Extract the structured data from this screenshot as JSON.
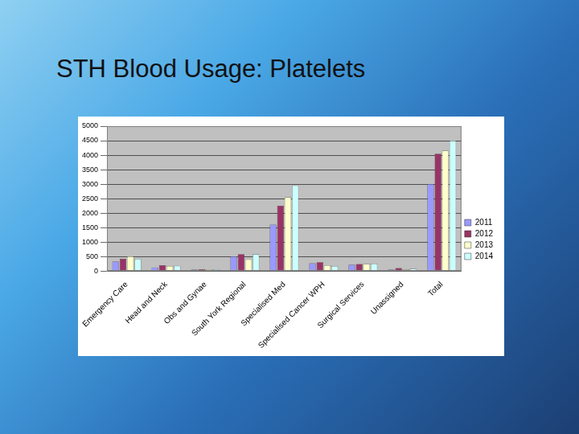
{
  "chart_data": {
    "type": "bar",
    "title": "STH Blood Usage: Platelets",
    "categories": [
      "Emergency Care",
      "Head and Neck",
      "Obs and Gynae",
      "South York Regional",
      "Specialised Med",
      "Specialised Cancer WPH",
      "Surgical Services",
      "Unassigned",
      "Total"
    ],
    "series": [
      {
        "name": "2011",
        "color": "#9999ff",
        "values": [
          330,
          120,
          50,
          500,
          1600,
          270,
          220,
          50,
          3000
        ]
      },
      {
        "name": "2012",
        "color": "#993366",
        "values": [
          420,
          200,
          60,
          580,
          2250,
          300,
          240,
          100,
          4050
        ]
      },
      {
        "name": "2013",
        "color": "#ffffcc",
        "values": [
          500,
          170,
          60,
          400,
          2550,
          200,
          240,
          50,
          4150
        ]
      },
      {
        "name": "2014",
        "color": "#ccffff",
        "values": [
          420,
          180,
          60,
          580,
          2950,
          170,
          250,
          80,
          4500
        ]
      }
    ],
    "ylim": [
      0,
      5000
    ],
    "yticks": [
      0,
      500,
      1000,
      1500,
      2000,
      2500,
      3000,
      3500,
      4000,
      4500,
      5000
    ],
    "grid": true,
    "legend": "right"
  }
}
